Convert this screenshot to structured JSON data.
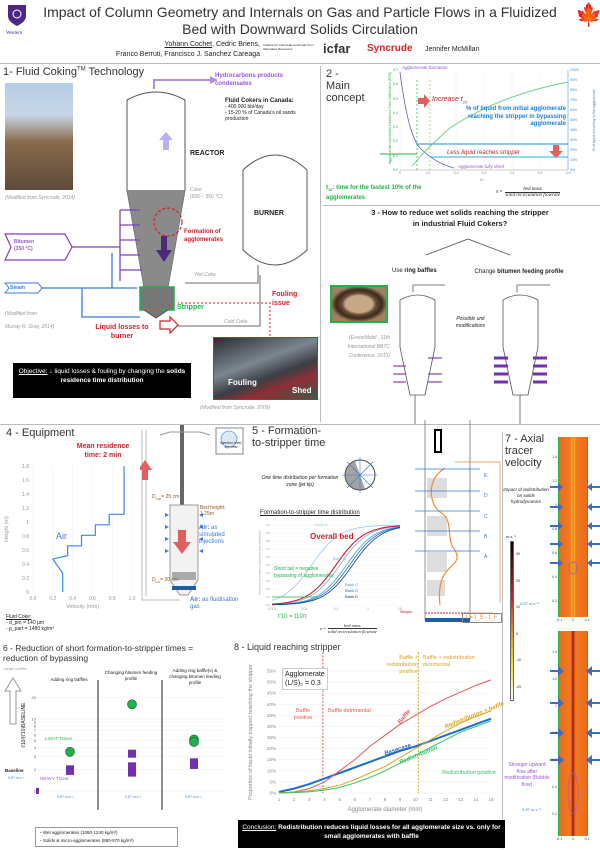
{
  "header": {
    "title_line1": "Impact of Column Geometry and Internals on Gas and Particle Flows in a Fluidized",
    "title_line2": "Bed with Downward Solids Circulation",
    "author_main": "Yohann Cochet",
    "authors_line1_rest": ", Cedric Briens,",
    "authors_line2": "Franco Berruti, Francisco J. Sanchez Careaga",
    "university_logo": "Western",
    "institute_logo": "Institute for Chemicals and Fuels from Alternative Resources",
    "icfar_logo": "icfar",
    "syncrude_logo": "Syncrude",
    "sponsor_name": "Jennifer McMillan",
    "canada_flag_icon": "maple-leaf-icon"
  },
  "s1": {
    "title": "1- Fluid Coking",
    "title_tm": "TM",
    "title_end": " Technology",
    "photo_credit": "(Modified from Syncrude, 2014)",
    "hydrocarbons": "Hydrocarbons products condensates",
    "cokers_heading": "Fluid Cokers in Canada:",
    "cokers_b1": "- 400 000 bbl/day",
    "cokers_b2": "- 15-20 % of Canada's oil sands production",
    "reactor": "REACTOR",
    "burner": "BURNER",
    "coke": "Coke",
    "coke_temp": "(500 – 550 °C)",
    "agglomerates": "Formation of agglomerates",
    "bitumen": "Bitumen",
    "bitumen_temp": "(350 °C)",
    "steam": "Steam",
    "diagram_credit1": "(Modified from",
    "diagram_credit2": "Murray R. Gray, 2014)",
    "hot_coke": "Hot Coke",
    "cold_coke": "Cold Coke",
    "stripper": "Stripper",
    "liquid_losses": "Liquid losses to burner",
    "fouling_issue": "Fouling issue",
    "fouling": "Fouling",
    "shed": "Shed",
    "fouling_credit": "(Modified from Syncrude, 2009)",
    "objective_label": "Objective:",
    "objective_text": " ↓ liquid losses & fouling by changing the ",
    "objective_bold": "solids residence time distribution"
  },
  "s2": {
    "title": "2 - Main concept",
    "agg_formation": "Agglomerate formation",
    "agg_dried": "Agglomerate fully dried",
    "increase": "Increase t",
    "increase_sub": "10",
    "pct_liquid": "% of liquid from initial agglomerate reaching the stripper in bypassing agglomerate",
    "less_liquid": "Less liquid reaches stripper",
    "y_left_label": "Agglomerate cumulative Residence Time Distribution (RTD)",
    "y_right_label": "% of liquid remaining in the agglomerate",
    "x_label": "t/τ",
    "y_left_ticks": [
      "0.0",
      "0.1",
      "0.2",
      "0.3",
      "0.4",
      "0.5",
      "0.6",
      "0.7"
    ],
    "y_right_ticks": [
      "0%",
      "10%",
      "20%",
      "30%",
      "40%",
      "50%",
      "60%",
      "70%",
      "80%",
      "90%",
      "100%"
    ],
    "x_ticks": [
      "0",
      "0.1",
      "0.2",
      "0.3",
      "0.4",
      "0.5",
      "0.6"
    ],
    "t10_def_label": "t",
    "t10_def_sub": "10",
    "t10_def_text": ": time for the fastest 10% of the agglomerates",
    "tau_num": "bed mass",
    "tau_den": "solid recirculation flowrate",
    "tau_sym": "τ ="
  },
  "s3": {
    "title": "3 - How to reduce wet solids reaching the stripper in industrial Fluid Cokers?",
    "option1_pre": "Use ",
    "option1_bold": "ring baffles",
    "option2_pre": "Change ",
    "option2_bold": "bitumen feeding profile",
    "modifications": "Possible unit modifications",
    "photo_credit": "(ExxonMobil , 11th International BBTC Conference, 2013)",
    "cold_coke": "Cold Coke"
  },
  "s4": {
    "title": "4 - Equipment",
    "residence_bold": "Mean residence",
    "residence_rest": "time: 2 min",
    "air": "Air",
    "x_label": "Velocity (m/s)",
    "y_label": "Height (m)",
    "x_ticks": [
      "0.0",
      "0.2",
      "0.4",
      "0.6",
      "0.8",
      "1.0"
    ],
    "y_ticks": [
      "0",
      "0.2",
      "0.4",
      "0.6",
      "0.8",
      "1",
      "1.2",
      "1.4",
      "1.6",
      "1.8"
    ],
    "injection_view": "Injection level, top view",
    "d_high": "D",
    "d_high_sub": "high",
    "d_high_val": "= 25 cm",
    "d_low": "D",
    "d_low_sub": "low",
    "d_low_val": "= 20 cm",
    "bed_height": "Bed height: 1.25m",
    "air_sim_bold": "Air:",
    "air_sim": " as simulated injections",
    "air_fluid_bold": "Air:",
    "air_fluid": " as fluidisation gas",
    "fluid_coke": "Fluid Coke:",
    "dp": "- d_pm = 140 µm",
    "rho": "- ρ_part = 1480 kg/m³"
  },
  "s5": {
    "title": "5 - Formation-to-stripper time",
    "one_time": "One time distribution per formation zone (jet tip)",
    "subtitle": "Formation-to-stripper time distribution",
    "overall": "Overall bed",
    "short_tail": "Short tail = negative bypassing of agglomerates",
    "banks": [
      "Bank A",
      "Bank B",
      "Bank C",
      "Bank D",
      "Bank E"
    ],
    "levels": [
      "E",
      "D",
      "C",
      "B",
      "A"
    ],
    "x_ticks": [
      "0.001",
      "0.01",
      "0.1",
      "1",
      "10"
    ],
    "x_label": "t/τ",
    "y_ticks": [
      "0.0",
      "0.1",
      "0.2",
      "0.3",
      "0.4",
      "0.5",
      "0.6",
      "0.7",
      "0.8",
      "0.9",
      "1.0"
    ],
    "y_label": "Formation-to-stripper cumulative time distribution",
    "t10_formula": "t'10 = t10/τ",
    "tau_num": "bed mass",
    "tau_den": "solid recirculation flowrate",
    "tau_sym": "τ =",
    "stripper": "Stripper",
    "tf": "t_F",
    "ts": "t_S",
    "t_formula": "t = t_S - t_F",
    "cold_coke": "Cold Coke"
  },
  "s6": {
    "title": "6 - Reduction of short formation-to-stripper times = reduction of bypassing",
    "larger_better": "Larger is better",
    "y_label": "t'10/(t'10)BASELINE",
    "panels": [
      "Adding ring baffles",
      "Changing bitumen feeding profile",
      "Adding ring baffle(s) & changing bitumen feeding profile"
    ],
    "baseline": "Baseline",
    "light": "LIGHT Tracer",
    "heavy": "HEAVY Tracer",
    "velocity": "0.87 m.s⁻¹",
    "y_ticks": [
      "1",
      "2",
      "3",
      "4",
      "5",
      "6",
      "7",
      "8",
      "9",
      "10",
      "20"
    ],
    "legend_wet": "Wet agglomerates (1080-1240 kg/m³)",
    "legend_solids": "Solids & micro-agglomerates (880-970 kg/m³)",
    "chart_data": {
      "type": "scatter",
      "y_scale": "log",
      "baseline": 1,
      "light": [
        [
          3.5
        ],
        [
          16
        ],
        [
          5.2,
          4.8
        ]
      ],
      "heavy": [
        [
          2.0,
          1.9
        ],
        [
          3.3,
          2.2,
          1.8
        ],
        [
          2.5,
          2.3
        ]
      ]
    }
  },
  "s7": {
    "title": "7 - Axial tracer velocity",
    "impact": "Impact of redistribution on solids hydrodynamics",
    "unit": "m.s⁻¹",
    "colorbar_ticks": [
      "30",
      "20",
      "10",
      "0",
      "-10",
      "-20"
    ],
    "y_ticks": [
      "1.4",
      "1.2",
      "1",
      "0.8",
      "0.6",
      "0.4",
      "0.2"
    ],
    "x_ticks": [
      "-0.1",
      "0",
      "0.1"
    ],
    "velocity": "0.87 m.s⁻¹",
    "stronger": "Stronger upward flow after modification (Bubble flow)"
  },
  "s8": {
    "title": "8 - Liquid reaching stripper",
    "agglomerate": "Agglomerate",
    "ls": "(L/S)₀ = 0.3",
    "baffle_pos": "Baffle positive",
    "baffle_det": "Baffle detrimental",
    "br_pos": "Baffle + redistribution positive",
    "br_det": "Baffle + redistribution detrimental",
    "redis_pos": "Redistribution positive",
    "conclusion_label": "Conclusion:",
    "conclusion_text": " Redistribution reduces liquid losses for all agglomerate size vs. only for small agglomerates with baffle"
  },
  "chart_data": {
    "type": "line",
    "xlabel": "Agglomerate diameter (mm)",
    "ylabel": "Proportion of liquid initially trapped reaching the stripper",
    "xlim": [
      1,
      15
    ],
    "ylim": [
      0,
      55
    ],
    "x_ticks": [
      "1",
      "2",
      "3",
      "4",
      "5",
      "6",
      "7",
      "8",
      "9",
      "10",
      "11",
      "12",
      "13",
      "14",
      "15"
    ],
    "y_ticks": [
      "0%",
      "5%",
      "10%",
      "15%",
      "20%",
      "25%",
      "30%",
      "35%",
      "40%",
      "45%",
      "50%",
      "55%"
    ],
    "x": [
      1,
      2,
      3,
      4,
      5,
      6,
      7,
      8,
      9,
      10,
      11,
      12,
      13,
      14,
      15
    ],
    "series": [
      {
        "name": "Basecase",
        "color": "#1f6fc5",
        "values": [
          0.5,
          2,
          4,
          6.5,
          9,
          11.5,
          14,
          16.5,
          19,
          21,
          23.5,
          26,
          28.5,
          31,
          33.5
        ]
      },
      {
        "name": "Baffle",
        "color": "#e05a5a",
        "values": [
          0,
          0.5,
          2,
          5,
          10,
          15,
          21,
          26,
          31,
          35,
          39,
          42.5,
          45.5,
          48.5,
          51
        ]
      },
      {
        "name": "Redistribution + baffle",
        "color": "#d9a520",
        "values": [
          0,
          0.3,
          1,
          2,
          3.5,
          6,
          9,
          12,
          16,
          20,
          24,
          28,
          31.5,
          34.5,
          37
        ]
      },
      {
        "name": "Redistribution",
        "color": "#3cc36a",
        "values": [
          0,
          0.2,
          0.6,
          1.3,
          2.5,
          4.5,
          7,
          10,
          13.5,
          17,
          20.5,
          24,
          27.5,
          30,
          32.5
        ]
      }
    ],
    "vlines": [
      {
        "x": 3.9,
        "color": "#e05a5a"
      },
      {
        "x": 10.2,
        "color": "#d9a520"
      }
    ],
    "grid": true
  },
  "velocity_profile": {
    "type": "line",
    "points": [
      [
        0.3,
        0
      ],
      [
        0.3,
        0.27
      ],
      [
        0.2,
        0.47
      ],
      [
        0.35,
        0.52
      ],
      [
        0.35,
        0.66
      ],
      [
        0.49,
        0.66
      ],
      [
        0.49,
        0.81
      ],
      [
        0.63,
        0.81
      ],
      [
        0.63,
        0.96
      ],
      [
        0.77,
        0.96
      ],
      [
        0.77,
        1.11
      ],
      [
        0.92,
        1.11
      ],
      [
        0.92,
        1.8
      ]
    ],
    "xlim": [
      0,
      1.0
    ],
    "ylim": [
      0,
      1.8
    ]
  }
}
